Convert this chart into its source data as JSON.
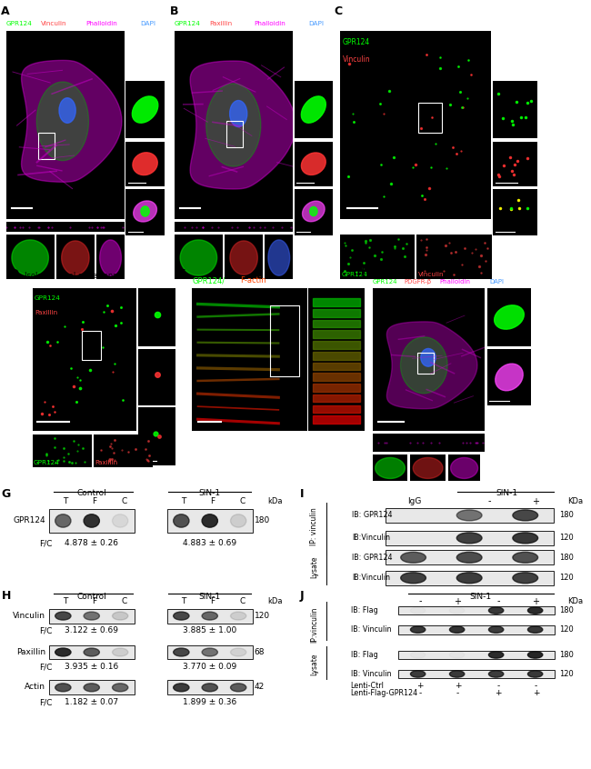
{
  "bg_color": "#ffffff",
  "panel_G": {
    "label": "G",
    "row_label": "GPR124",
    "control_header": "Control",
    "sin1_header": "SIN-1",
    "cols": [
      "T",
      "F",
      "C"
    ],
    "kda_label": "kDa",
    "kda_value": "180",
    "ctrl_bands": [
      0.6,
      0.85,
      0.08
    ],
    "sin1_bands": [
      0.7,
      0.88,
      0.12
    ],
    "fc_label": "F/C",
    "fc_ctrl": "4.878 ± 0.26",
    "fc_sin1": "4.883 ± 0.69"
  },
  "panel_H": {
    "label": "H",
    "control_header": "Control",
    "sin1_header": "SIN-1",
    "cols": [
      "T",
      "F",
      "C"
    ],
    "kda_label": "kDa",
    "rows": [
      {
        "label": "Vinculin",
        "kda": "120",
        "ctrl_bands": [
          0.75,
          0.55,
          0.15
        ],
        "sin1_bands": [
          0.75,
          0.6,
          0.12
        ]
      },
      {
        "label": "Paxillin",
        "kda": "68",
        "ctrl_bands": [
          0.88,
          0.65,
          0.12
        ],
        "sin1_bands": [
          0.75,
          0.55,
          0.1
        ]
      },
      {
        "label": "Actin",
        "kda": "42",
        "ctrl_bands": [
          0.7,
          0.65,
          0.6
        ],
        "sin1_bands": [
          0.8,
          0.7,
          0.65
        ]
      }
    ],
    "fc_label": "F/C",
    "fc_ctrl": [
      "3.122 ± 0.69",
      "3.935 ± 0.16",
      "1.182 ± 0.07"
    ],
    "fc_sin1": [
      "3.885 ± 1.00",
      "3.770 ± 0.09",
      "1.899 ± 0.36"
    ]
  },
  "panel_I": {
    "label": "I",
    "sin1_header": "SIN-1",
    "igg_label": "IgG",
    "col_labels": [
      "-",
      "+"
    ],
    "kda_label": "KDa",
    "ip_label": "IP: vinculin",
    "lysate_label": "Lysate",
    "ip_rows": [
      {
        "label": "IB: GPR124",
        "kda": "180",
        "bands": [
          0.0,
          0.55,
          0.75
        ]
      },
      {
        "label": "IB:Vinculin",
        "kda": "120",
        "bands": [
          0.0,
          0.78,
          0.82
        ]
      }
    ],
    "lysate_rows": [
      {
        "label": "IB: GPR124",
        "kda": "180",
        "bands": [
          0.65,
          0.72,
          0.7
        ]
      },
      {
        "label": "IB:Vinculin",
        "kda": "120",
        "bands": [
          0.78,
          0.8,
          0.78
        ]
      }
    ]
  },
  "panel_J": {
    "label": "J",
    "sin1_header": "SIN-1",
    "col_labels": [
      "-",
      "+",
      "-",
      "+"
    ],
    "kda_label": "KDa",
    "ip_label": "IP:vinculin",
    "lysate_label": "Lysate",
    "ip_rows": [
      {
        "label": "IB: Flag",
        "kda": "180",
        "bands": [
          0.02,
          0.02,
          0.82,
          0.88
        ]
      },
      {
        "label": "IB: Vinculin",
        "kda": "120",
        "bands": [
          0.82,
          0.84,
          0.8,
          0.82
        ]
      }
    ],
    "lysate_rows": [
      {
        "label": "IB: Flag",
        "kda": "180",
        "bands": [
          0.02,
          0.02,
          0.88,
          0.9
        ]
      },
      {
        "label": "IB: Vinculin",
        "kda": "120",
        "bands": [
          0.8,
          0.82,
          0.8,
          0.82
        ]
      }
    ],
    "lenti_ctrl": [
      "+",
      "+",
      "-",
      "-"
    ],
    "lenti_flag_gpr124": [
      "-",
      "-",
      "+",
      "+"
    ]
  }
}
